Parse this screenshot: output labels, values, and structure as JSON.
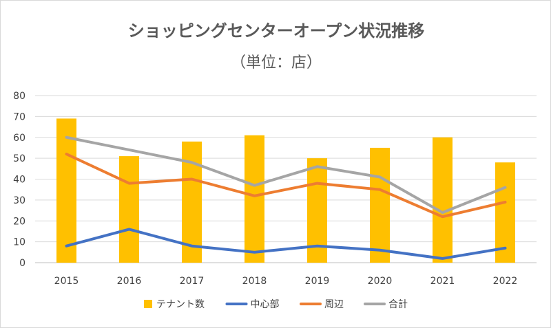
{
  "chart_data": {
    "type": "bar",
    "title": "ショッピングセンターオープン状況推移",
    "subtitle": "（単位：店）",
    "categories": [
      "2015",
      "2016",
      "2017",
      "2018",
      "2019",
      "2020",
      "2021",
      "2022"
    ],
    "ylim": [
      0,
      80
    ],
    "yticks": [
      0,
      10,
      20,
      30,
      40,
      50,
      60,
      70,
      80
    ],
    "grid": true,
    "legend": "bottom",
    "series": [
      {
        "name": "テナント数",
        "type": "bar",
        "color": "#ffc000",
        "values": [
          69,
          51,
          58,
          61,
          50,
          55,
          60,
          48
        ]
      },
      {
        "name": "中心部",
        "type": "line",
        "color": "#4472c4",
        "values": [
          8,
          16,
          8,
          5,
          8,
          6,
          2,
          7
        ]
      },
      {
        "name": "周辺",
        "type": "line",
        "color": "#ed7d31",
        "values": [
          52,
          38,
          40,
          32,
          38,
          35,
          22,
          29
        ]
      },
      {
        "name": "合計",
        "type": "line",
        "color": "#a5a5a5",
        "values": [
          60,
          54,
          48,
          37,
          46,
          41,
          24,
          36
        ]
      }
    ]
  }
}
